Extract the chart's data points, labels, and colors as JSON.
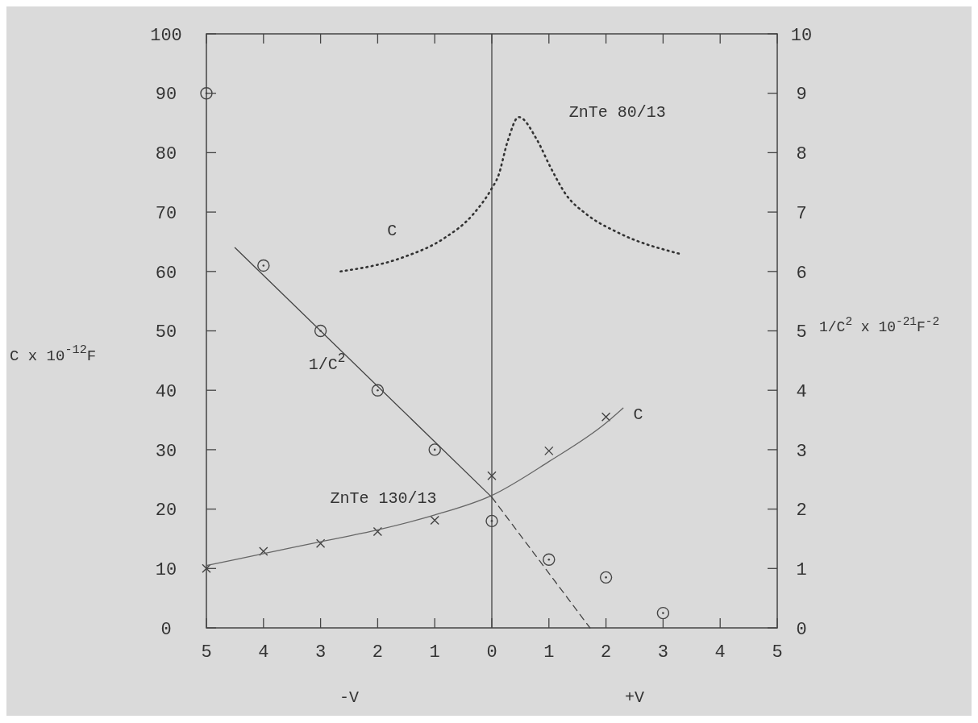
{
  "chart_data": {
    "type": "scatter",
    "xlim": [
      -5,
      5
    ],
    "xticks": [
      {
        "value": -5,
        "label": "5"
      },
      {
        "value": -4,
        "label": "4"
      },
      {
        "value": -3,
        "label": "3"
      },
      {
        "value": -2,
        "label": "2"
      },
      {
        "value": -1,
        "label": "1"
      },
      0,
      {
        "value": 1,
        "label": "1"
      },
      {
        "value": 2,
        "label": "2"
      },
      {
        "value": 3,
        "label": "3"
      },
      {
        "value": 4,
        "label": "4"
      },
      {
        "value": 5,
        "label": "5"
      }
    ],
    "ylim": [
      0,
      100
    ],
    "yticks": [
      0,
      10,
      20,
      30,
      40,
      50,
      60,
      70,
      80,
      90,
      100
    ],
    "y2lim": [
      0,
      10
    ],
    "y2ticks": [
      0,
      1,
      2,
      3,
      4,
      5,
      6,
      7,
      8,
      9,
      10
    ],
    "ylabel": "C x 10$^{-12}$F",
    "y2label": "1/C$^{2}$ x 10$^{-21}$F$^{-2}$",
    "ref_lines": [
      {
        "axis": "x",
        "value": 0,
        "label": null,
        "color": "#444444"
      }
    ],
    "series": [
      {
        "name": "C",
        "marker": "cross",
        "color": "#444444",
        "x": [
          -5,
          -4,
          -3,
          -2,
          -1,
          0,
          1,
          2
        ],
        "values": [
          10,
          12.9,
          14.2,
          16.2,
          18.1,
          25.6,
          29.8,
          35.5
        ]
      },
      {
        "type": "line",
        "marker": "none",
        "line_style": "solid",
        "color": "#666666",
        "x": [
          -5,
          -4,
          -3,
          -2,
          -1,
          0,
          1,
          2,
          2.3
        ],
        "values": [
          10.5,
          12.5,
          14.5,
          16.5,
          19,
          22.3,
          28,
          34.5,
          37
        ]
      },
      {
        "name": "1/C$^{2}$",
        "marker": "circle",
        "axis": "y2",
        "color": "#444444",
        "x": [
          -5,
          -4,
          -3,
          -2,
          -1,
          0,
          1,
          2,
          3
        ],
        "values": [
          9.0,
          6.1,
          5.0,
          4.0,
          3.0,
          1.8,
          1.15,
          0.85,
          0.25
        ]
      },
      {
        "type": "line",
        "marker": "none",
        "line_style": "solid",
        "axis": "y2",
        "color": "#444444",
        "x": [
          -4.5,
          0
        ],
        "values": [
          6.4,
          2.2
        ]
      },
      {
        "type": "line",
        "marker": "none",
        "line_style": "dashed",
        "axis": "y2",
        "color": "#444444",
        "x": [
          0,
          1.72
        ],
        "values": [
          2.2,
          0
        ]
      },
      {
        "name": "C",
        "type": "line",
        "marker": "none",
        "line_style": "dotted",
        "color": "#333333",
        "x": [
          -2.65,
          -1.55,
          -0.85,
          -0.33,
          0,
          0.11,
          0.28,
          0.47,
          0.8,
          1.03,
          1.31,
          1.65,
          2.22,
          3.28
        ],
        "values": [
          60,
          62.4,
          65.5,
          69.6,
          74,
          76,
          82,
          86,
          82,
          77.5,
          72.8,
          69.7,
          66.5,
          63
        ]
      }
    ],
    "annotations": [
      "ZnTe 80/13",
      "ZnTe 130/13",
      "-V",
      "+V"
    ]
  }
}
